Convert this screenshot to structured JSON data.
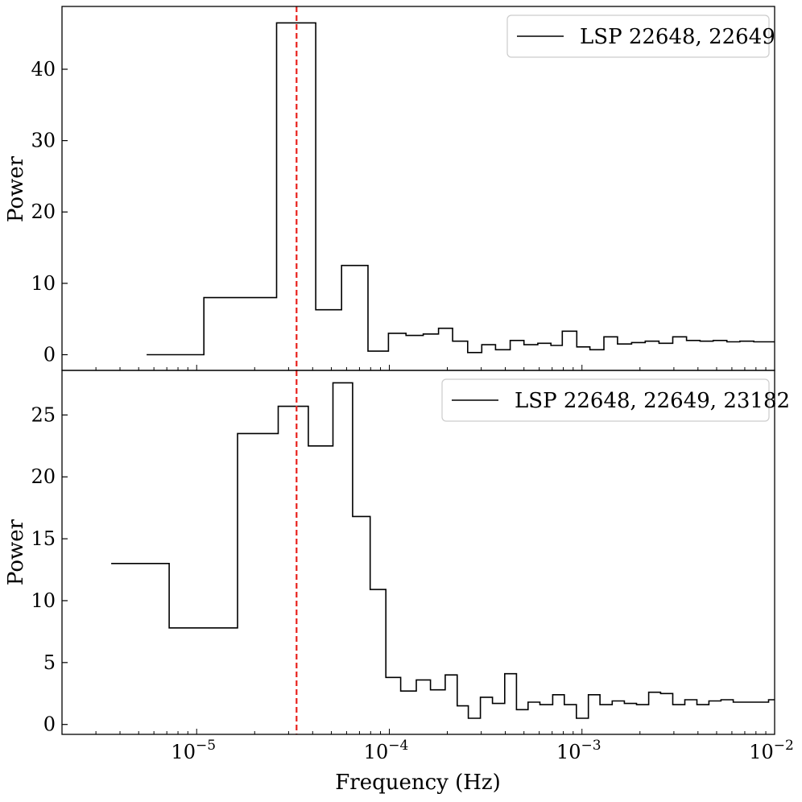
{
  "chart_data": [
    {
      "type": "line",
      "drawstyle": "steps",
      "panel": "top",
      "xscale": "log",
      "xlim": [
        2e-06,
        0.01
      ],
      "ylim": [
        -2.2,
        48.8
      ],
      "yticks": [
        0,
        10,
        20,
        30,
        40
      ],
      "ylabel": "Power",
      "xlabel": "",
      "legend": {
        "position": "top-right",
        "entries": [
          "LSP 22648, 22649"
        ]
      },
      "vline": {
        "x": 3.3e-05,
        "color": "#e8201c",
        "style": "dashed"
      },
      "series": [
        {
          "name": "LSP 22648, 22649",
          "color": "#000000",
          "edges": [
            5.5e-06,
            1.09e-05,
            2.6e-05,
            4.15e-05,
            5.65e-05,
            7.75e-05,
            9.9e-05,
            0.000122,
            0.00015,
            0.00018,
            0.000213,
            0.000255,
            0.000302,
            0.000356,
            0.000424,
            0.0005,
            0.00059,
            0.00069,
            0.00079,
            0.00094,
            0.0011,
            0.0013,
            0.00153,
            0.00181,
            0.00213,
            0.00251,
            0.00296,
            0.00349,
            0.0041,
            0.0048,
            0.00565,
            0.0066,
            0.0078,
            0.0092,
            0.0105
          ],
          "values": [
            0.0,
            8.0,
            46.5,
            6.3,
            12.5,
            0.5,
            3.0,
            2.7,
            2.9,
            3.7,
            1.9,
            0.3,
            1.4,
            0.7,
            2.0,
            1.4,
            1.6,
            1.3,
            3.3,
            1.1,
            0.7,
            2.5,
            1.5,
            1.7,
            1.9,
            1.6,
            2.5,
            2.0,
            1.9,
            2.0,
            1.8,
            1.9,
            1.8,
            1.8
          ]
        }
      ]
    },
    {
      "type": "line",
      "drawstyle": "steps",
      "panel": "bottom",
      "xscale": "log",
      "xlim": [
        2e-06,
        0.01
      ],
      "ylim": [
        -0.8,
        28.6
      ],
      "yticks": [
        0,
        5,
        10,
        15,
        20,
        25
      ],
      "xticks": [
        "10",
        "10",
        "10",
        "10"
      ],
      "xtick_exponents": [
        "−5",
        "−4",
        "−3",
        "−2"
      ],
      "xtick_values": [
        1e-05,
        0.0001,
        0.001,
        0.01
      ],
      "ylabel": "Power",
      "xlabel": "Frequency (Hz)",
      "legend": {
        "position": "top-right",
        "entries": [
          "LSP 22648, 22649, 23182"
        ]
      },
      "vline": {
        "x": 3.3e-05,
        "color": "#e8201c",
        "style": "dashed"
      },
      "series": [
        {
          "name": "LSP 22648, 22649, 23182",
          "color": "#000000",
          "edges": [
            3.6e-06,
            7.2e-06,
            1.63e-05,
            2.65e-05,
            3.8e-05,
            5.1e-05,
            6.45e-05,
            7.95e-05,
            9.6e-05,
            0.0001145,
            0.000138,
            0.0001635,
            0.000195,
            0.000225,
            0.000257,
            0.000297,
            0.000343,
            0.000397,
            0.000457,
            0.000525,
            0.000605,
            0.000705,
            0.00081,
            0.000935,
            0.00108,
            0.00124,
            0.001435,
            0.00166,
            0.00192,
            0.00222,
            0.00256,
            0.00296,
            0.00342,
            0.00395,
            0.00456,
            0.00527,
            0.0061,
            0.0071,
            0.0082,
            0.0093,
            0.0101
          ],
          "values": [
            13.0,
            7.8,
            23.5,
            25.7,
            22.5,
            27.6,
            16.8,
            10.9,
            3.8,
            2.7,
            3.6,
            2.8,
            4.0,
            1.5,
            0.5,
            2.2,
            1.7,
            4.1,
            1.2,
            1.8,
            1.6,
            2.4,
            1.6,
            0.5,
            2.4,
            1.6,
            1.9,
            1.7,
            1.6,
            2.6,
            2.5,
            1.6,
            2.0,
            1.6,
            1.9,
            2.0,
            1.8,
            1.8,
            1.8,
            2.0
          ]
        }
      ]
    }
  ]
}
